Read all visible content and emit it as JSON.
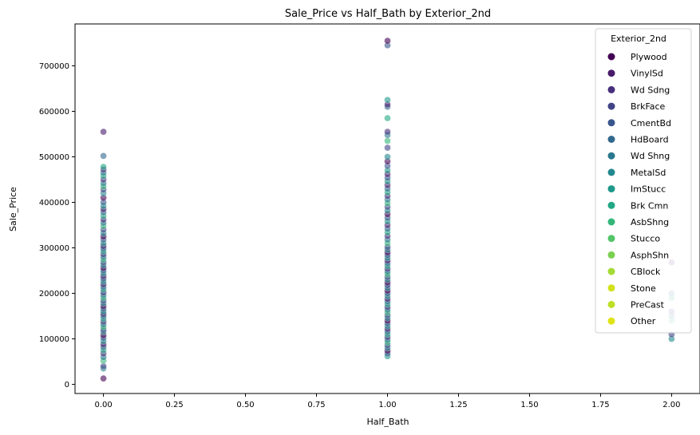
{
  "chart_data": {
    "type": "scatter",
    "title": "Sale_Price vs Half_Bath by Exterior_2nd",
    "xlabel": "Half_Bath",
    "ylabel": "Sale_Price",
    "xlim": [
      -0.1,
      2.1
    ],
    "ylim": [
      -20000,
      792000
    ],
    "xticks": [
      0.0,
      0.25,
      0.5,
      0.75,
      1.0,
      1.25,
      1.5,
      1.75,
      2.0
    ],
    "xtick_labels": [
      "0.00",
      "0.25",
      "0.50",
      "0.75",
      "1.00",
      "1.25",
      "1.50",
      "1.75",
      "2.00"
    ],
    "yticks": [
      0,
      100000,
      200000,
      300000,
      400000,
      500000,
      600000,
      700000
    ],
    "ytick_labels": [
      "0",
      "100000",
      "200000",
      "300000",
      "400000",
      "500000",
      "600000",
      "700000"
    ],
    "grid": false,
    "legend": {
      "title": "Exterior_2nd",
      "placement": "top-right",
      "entries": [
        {
          "name": "Plywood",
          "color": "#440154"
        },
        {
          "name": "VinylSd",
          "color": "#481a6c"
        },
        {
          "name": "Wd Sdng",
          "color": "#472f7d"
        },
        {
          "name": "BrkFace",
          "color": "#414487"
        },
        {
          "name": "CmentBd",
          "color": "#39568c"
        },
        {
          "name": "HdBoard",
          "color": "#31688e"
        },
        {
          "name": "Wd Shng",
          "color": "#2a788e"
        },
        {
          "name": "MetalSd",
          "color": "#23888e"
        },
        {
          "name": "ImStucc",
          "color": "#1f988b"
        },
        {
          "name": "Brk Cmn",
          "color": "#22a884"
        },
        {
          "name": "AsbShng",
          "color": "#35b779"
        },
        {
          "name": "Stucco",
          "color": "#54c568"
        },
        {
          "name": "AsphShn",
          "color": "#7ad151"
        },
        {
          "name": "CBlock",
          "color": "#a5db36"
        },
        {
          "name": "Stone",
          "color": "#d2e21b"
        },
        {
          "name": "PreCast",
          "color": "#bddf26"
        },
        {
          "name": "Other",
          "color": "#dfe318"
        }
      ]
    },
    "point_alpha": 0.6,
    "series": [
      {
        "x": 0,
        "values": [
          13000,
          35000,
          40000,
          52000,
          60000,
          68000,
          75000,
          82000,
          88000,
          95000,
          102000,
          108000,
          115000,
          120000,
          126000,
          132000,
          138000,
          144000,
          150000,
          155000,
          160000,
          166000,
          172000,
          178000,
          184000,
          190000,
          196000,
          202000,
          208000,
          214000,
          220000,
          226000,
          232000,
          238000,
          244000,
          250000,
          256000,
          262000,
          268000,
          274000,
          280000,
          286000,
          292000,
          298000,
          304000,
          310000,
          318000,
          325000,
          332000,
          340000,
          348000,
          355000,
          362000,
          370000,
          378000,
          385000,
          392000,
          400000,
          410000,
          420000,
          428000,
          435000,
          442000,
          450000,
          458000,
          465000,
          472000,
          478000,
          502000,
          555000
        ]
      },
      {
        "x": 1,
        "values": [
          62000,
          68000,
          74000,
          80000,
          86000,
          92000,
          98000,
          104000,
          110000,
          116000,
          122000,
          128000,
          134000,
          140000,
          146000,
          152000,
          158000,
          164000,
          170000,
          176000,
          182000,
          188000,
          194000,
          200000,
          206000,
          212000,
          218000,
          224000,
          230000,
          236000,
          242000,
          248000,
          254000,
          260000,
          266000,
          272000,
          278000,
          284000,
          290000,
          296000,
          302000,
          310000,
          318000,
          326000,
          334000,
          342000,
          350000,
          358000,
          366000,
          374000,
          382000,
          390000,
          398000,
          406000,
          414000,
          422000,
          430000,
          438000,
          446000,
          454000,
          462000,
          470000,
          480000,
          490000,
          500000,
          520000,
          535000,
          548000,
          555000,
          585000,
          610000,
          615000,
          625000,
          745000,
          755000
        ]
      },
      {
        "x": 2,
        "values": [
          100000,
          110000,
          140000,
          150000,
          160000,
          190000,
          200000,
          268000
        ]
      }
    ]
  }
}
